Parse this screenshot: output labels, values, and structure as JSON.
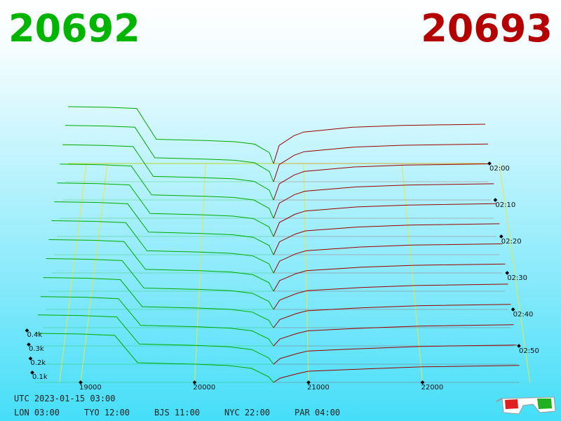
{
  "chart_data": {
    "type": "depth3d",
    "bid": 20692,
    "ask": 20693,
    "bid_color": "#00b400",
    "ask_color": "#b40000",
    "bids": {
      "color": "#00aa00",
      "prices": [
        18600,
        19000,
        19300,
        19500,
        20000,
        20300,
        20500,
        20650,
        20692
      ],
      "snapshots": [
        [
          470,
          465,
          455,
          200,
          190,
          180,
          160,
          90,
          0
        ],
        [
          460,
          455,
          445,
          195,
          185,
          175,
          155,
          85,
          0
        ],
        [
          445,
          440,
          430,
          190,
          180,
          170,
          150,
          80,
          0
        ],
        [
          430,
          425,
          415,
          185,
          175,
          165,
          145,
          78,
          0
        ],
        [
          420,
          415,
          405,
          180,
          170,
          160,
          140,
          75,
          0
        ],
        [
          410,
          405,
          395,
          175,
          165,
          155,
          135,
          72,
          0
        ],
        [
          400,
          395,
          385,
          170,
          160,
          150,
          130,
          70,
          0
        ],
        [
          390,
          385,
          375,
          165,
          155,
          145,
          125,
          65,
          0
        ],
        [
          380,
          375,
          365,
          160,
          150,
          140,
          120,
          60,
          0
        ],
        [
          370,
          365,
          355,
          155,
          145,
          135,
          115,
          55,
          0
        ],
        [
          360,
          355,
          345,
          150,
          140,
          130,
          110,
          50,
          0
        ],
        [
          355,
          350,
          340,
          145,
          135,
          125,
          105,
          45,
          0
        ],
        [
          350,
          345,
          335,
          140,
          130,
          120,
          100,
          40,
          0
        ]
      ]
    },
    "asks": {
      "color": "#9a0000",
      "prices": [
        20693,
        20750,
        20900,
        21000,
        21500,
        22000,
        22850
      ],
      "snapshots": [
        [
          0,
          150,
          230,
          260,
          300,
          315,
          325
        ],
        [
          0,
          140,
          216,
          245,
          283,
          298,
          308
        ],
        [
          0,
          130,
          202,
          230,
          266,
          281,
          291
        ],
        [
          0,
          120,
          188,
          215,
          249,
          264,
          274
        ],
        [
          0,
          110,
          174,
          200,
          232,
          247,
          257
        ],
        [
          0,
          100,
          160,
          185,
          215,
          230,
          240
        ],
        [
          0,
          90,
          146,
          170,
          198,
          213,
          223
        ],
        [
          0,
          80,
          132,
          155,
          181,
          196,
          206
        ],
        [
          0,
          70,
          118,
          140,
          164,
          179,
          189
        ],
        [
          0,
          60,
          104,
          125,
          147,
          162,
          172
        ],
        [
          0,
          50,
          90,
          110,
          130,
          145,
          155
        ],
        [
          0,
          40,
          76,
          95,
          113,
          128,
          138
        ],
        [
          0,
          30,
          62,
          80,
          96,
          111,
          121
        ]
      ]
    },
    "xticks": [
      19000,
      20000,
      21000,
      22000
    ],
    "yticks": [
      {
        "value": 100,
        "label": "0.1k"
      },
      {
        "value": 200,
        "label": "0.2k"
      },
      {
        "value": 300,
        "label": "0.3k"
      },
      {
        "value": 400,
        "label": "0.4k"
      }
    ],
    "time_ticks": [
      "02:00",
      "02:10",
      "02:20",
      "02:30",
      "02:40",
      "02:50"
    ],
    "grid_color": "#e8e840",
    "utc": "UTC 2023-01-15 03:00",
    "clocks": [
      "LON 03:00",
      "TYO 12:00",
      "BJS 11:00",
      "NYC 22:00",
      "PAR 04:00"
    ]
  }
}
